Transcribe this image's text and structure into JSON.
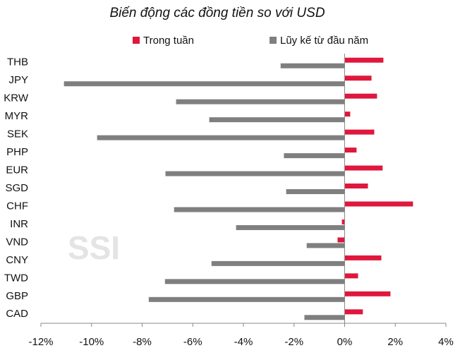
{
  "chart_data": {
    "type": "hbar",
    "title": "Biến động các đồng tiền so với USD",
    "watermark": "SSI",
    "categories": [
      "THB",
      "JPY",
      "KRW",
      "MYR",
      "SEK",
      "PHP",
      "EUR",
      "SGD",
      "CHF",
      "INR",
      "VND",
      "CNY",
      "TWD",
      "GBP",
      "CAD"
    ],
    "series": [
      {
        "name": "Trong tuần",
        "color": "#e0173c",
        "values": [
          1.53,
          1.06,
          1.28,
          0.22,
          1.17,
          0.47,
          1.5,
          0.92,
          2.7,
          -0.11,
          -0.28,
          1.45,
          0.53,
          1.81,
          0.72
        ]
      },
      {
        "name": "Lũy kế từ đầu năm",
        "color": "#7f7f7f",
        "values": [
          -2.53,
          -11.09,
          -6.66,
          -5.35,
          -9.78,
          -2.4,
          -7.08,
          -2.31,
          -6.74,
          -4.29,
          -1.5,
          -5.26,
          -7.1,
          -7.74,
          -1.59
        ]
      }
    ],
    "xlim": [
      -12,
      4
    ],
    "xticks": [
      {
        "value": -12,
        "label": "-12%"
      },
      {
        "value": -10,
        "label": "-10%"
      },
      {
        "value": -8,
        "label": "-8%"
      },
      {
        "value": -6,
        "label": "-6%"
      },
      {
        "value": -4,
        "label": "-4%"
      },
      {
        "value": -2,
        "label": "-2%"
      },
      {
        "value": 0,
        "label": "0%"
      },
      {
        "value": 2,
        "label": "2%"
      },
      {
        "value": 4,
        "label": "4%"
      }
    ],
    "legend": "top"
  }
}
